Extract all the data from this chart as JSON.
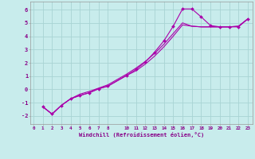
{
  "xlabel": "Windchill (Refroidissement éolien,°C)",
  "background_color": "#c8ecec",
  "grid_color": "#a8d4d4",
  "line_color": "#aa00aa",
  "x_ticks": [
    0,
    1,
    2,
    3,
    4,
    5,
    6,
    7,
    8,
    10,
    11,
    12,
    13,
    14,
    15,
    16,
    17,
    18,
    19,
    20,
    21,
    22,
    23
  ],
  "y_ticks": [
    -2,
    -1,
    0,
    1,
    2,
    3,
    4,
    5,
    6
  ],
  "xlim": [
    -0.3,
    23.5
  ],
  "ylim": [
    -2.6,
    6.6
  ],
  "line1_x": [
    1,
    2,
    3,
    4,
    5,
    6,
    7,
    8,
    10,
    11,
    12,
    13,
    14,
    15,
    16,
    17,
    18,
    19,
    20,
    21,
    22,
    23
  ],
  "line1_y": [
    -1.3,
    -1.85,
    -1.2,
    -0.7,
    -0.45,
    -0.25,
    0.05,
    0.25,
    1.05,
    1.5,
    2.05,
    2.8,
    3.65,
    4.75,
    6.05,
    6.05,
    5.45,
    4.8,
    4.7,
    4.7,
    4.7,
    5.3
  ],
  "line2_x": [
    1,
    2,
    3,
    4,
    5,
    6,
    7,
    8,
    10,
    11,
    12,
    13,
    14,
    15,
    16,
    17,
    18,
    19,
    20,
    21,
    22,
    23
  ],
  "line2_y": [
    -1.3,
    -1.85,
    -1.2,
    -0.7,
    -0.45,
    -0.25,
    0.05,
    0.25,
    1.05,
    1.4,
    1.9,
    2.5,
    3.2,
    4.0,
    4.85,
    4.75,
    4.7,
    4.7,
    4.7,
    4.7,
    4.75,
    5.3
  ],
  "line3_x": [
    1,
    2,
    3,
    4,
    5,
    6,
    7,
    8,
    10,
    11,
    12,
    13,
    14,
    15,
    16,
    17,
    18,
    19,
    20,
    21,
    22,
    23
  ],
  "line3_y": [
    -1.3,
    -1.85,
    -1.2,
    -0.7,
    -0.35,
    -0.15,
    0.1,
    0.35,
    1.15,
    1.6,
    2.1,
    2.7,
    3.4,
    4.2,
    5.0,
    4.75,
    4.7,
    4.7,
    4.7,
    4.7,
    4.75,
    5.3
  ]
}
